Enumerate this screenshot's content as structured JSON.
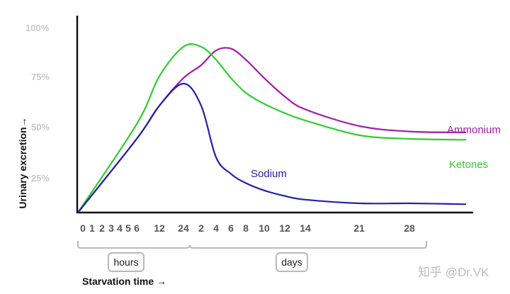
{
  "chart_data": {
    "type": "line",
    "xlabel": "Starvation time →",
    "ylabel": "Urinary excretion→",
    "yticks": [
      "25%",
      "50%",
      "75%",
      "100%"
    ],
    "ylim": [
      0,
      100
    ],
    "ylabel_unit": "%",
    "x_categories": [
      "0",
      "1",
      "2",
      "3",
      "4",
      "5",
      "6",
      "12",
      "24",
      "2",
      "4",
      "6",
      "8",
      "10",
      "12",
      "14",
      "21",
      "28"
    ],
    "x_groups": [
      {
        "label": "hours",
        "from": "0",
        "to": "24"
      },
      {
        "label": "days",
        "from": "2",
        "to": "28"
      }
    ],
    "series": [
      {
        "name": "Sodium",
        "color": "#2222a8",
        "points": [
          [
            "0 h",
            0
          ],
          [
            "6 h",
            40
          ],
          [
            "12 h",
            58
          ],
          [
            "24 h",
            70
          ],
          [
            "2 d",
            58
          ],
          [
            "4 d",
            30
          ],
          [
            "6 d",
            21
          ],
          [
            "8 d",
            16
          ],
          [
            "10 d",
            12
          ],
          [
            "12 d",
            9
          ],
          [
            "14 d",
            7
          ],
          [
            "21 d",
            5
          ],
          [
            "28 d",
            5
          ]
        ]
      },
      {
        "name": "Ammonium",
        "color": "#a21ba8",
        "points": [
          [
            "0 h",
            0
          ],
          [
            "6 h",
            40
          ],
          [
            "12 h",
            58
          ],
          [
            "24 h",
            73
          ],
          [
            "2 d",
            80
          ],
          [
            "4 d",
            88
          ],
          [
            "6 d",
            89
          ],
          [
            "8 d",
            83
          ],
          [
            "10 d",
            73
          ],
          [
            "12 d",
            63
          ],
          [
            "14 d",
            56
          ],
          [
            "21 d",
            47
          ],
          [
            "28 d",
            44
          ]
        ]
      },
      {
        "name": "Ketones",
        "color": "#2ecc2e",
        "points": [
          [
            "0 h",
            0
          ],
          [
            "6 h",
            48
          ],
          [
            "12 h",
            74
          ],
          [
            "24 h",
            90
          ],
          [
            "2 d",
            90
          ],
          [
            "4 d",
            83
          ],
          [
            "6 d",
            73
          ],
          [
            "8 d",
            65
          ],
          [
            "10 d",
            59
          ],
          [
            "12 d",
            54
          ],
          [
            "14 d",
            50
          ],
          [
            "21 d",
            42
          ],
          [
            "28 d",
            40
          ]
        ]
      }
    ],
    "grid": false,
    "watermark": "知乎 @Dr.VK"
  }
}
